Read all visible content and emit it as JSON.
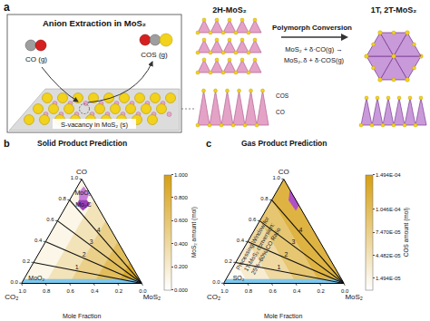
{
  "panel_a": {
    "label": "a",
    "title": "Anion Extraction in MoS₂",
    "gas_in": "CO (g)",
    "gas_out": "COS (g)",
    "vacancy": "S-vacancy in MoS₂ (s)",
    "start_phase": "2H-MoS₂",
    "conversion": "Polymorph Conversion",
    "equation": [
      "MoS₂ + δ·CO(g) →",
      "MoS₂₋δ + δ·COS(g)"
    ],
    "end_phase": "1T, 2T-MoS₂",
    "slab_gases": [
      "COS",
      "CO"
    ]
  },
  "chart_data": [
    {
      "type": "ternary",
      "label": "b",
      "title": "Solid Product Prediction",
      "axis_label": "Mole Fraction",
      "grid": false,
      "axes": {
        "a": {
          "title": "CO",
          "ticks": [
            {
              "value": 0,
              "label": "0.0"
            },
            {
              "value": 0.2,
              "label": "0.2"
            },
            {
              "value": 0.4,
              "label": "0.4"
            },
            {
              "value": 0.6,
              "label": "0.6"
            },
            {
              "value": 0.8,
              "label": "0.8"
            },
            {
              "value": 1,
              "label": "1.0"
            }
          ]
        },
        "b": {
          "title": "CO₂",
          "ticks": [
            {
              "value": 0,
              "label": "0.0"
            },
            {
              "value": 0.2,
              "label": "0.2"
            },
            {
              "value": 0.4,
              "label": "0.4"
            },
            {
              "value": 0.6,
              "label": "0.6"
            },
            {
              "value": 0.8,
              "label": "0.8"
            },
            {
              "value": 1,
              "label": "1.0"
            }
          ]
        },
        "c": {
          "title": "MoS₂"
        }
      },
      "colorbar": {
        "title": "MoS₂ amount (mol)",
        "range": [
          0,
          1
        ],
        "ticks": [
          {
            "value": 0,
            "label": "0.000"
          },
          {
            "value": 0.2,
            "label": "0.200"
          },
          {
            "value": 0.4,
            "label": "0.400"
          },
          {
            "value": 0.6,
            "label": "0.600"
          },
          {
            "value": 0.8,
            "label": "0.800"
          },
          {
            "value": 1,
            "label": "1.000"
          }
        ]
      },
      "bands": [
        {
          "value": 0.1,
          "points": [
            [
              1,
              0,
              0
            ],
            [
              0,
              1,
              0
            ],
            [
              0,
              0.8,
              0.2
            ],
            [
              0.8,
              0,
              0.2
            ]
          ]
        },
        {
          "value": 0.3,
          "points": [
            [
              0.8,
              0,
              0.2
            ],
            [
              0,
              0.8,
              0.2
            ],
            [
              0,
              0.6,
              0.4
            ],
            [
              0.6,
              0,
              0.4
            ]
          ]
        },
        {
          "value": 0.5,
          "points": [
            [
              0.6,
              0,
              0.4
            ],
            [
              0,
              0.6,
              0.4
            ],
            [
              0,
              0.4,
              0.6
            ],
            [
              0.4,
              0,
              0.6
            ]
          ]
        },
        {
          "value": 0.7,
          "points": [
            [
              0.4,
              0,
              0.6
            ],
            [
              0,
              0.4,
              0.6
            ],
            [
              0,
              0.2,
              0.8
            ],
            [
              0.2,
              0,
              0.8
            ]
          ]
        },
        {
          "value": 0.9,
          "points": [
            [
              0.2,
              0,
              0.8
            ],
            [
              0,
              0.2,
              0.8
            ],
            [
              0,
              0,
              1
            ]
          ]
        }
      ],
      "regions": [
        {
          "label": "MoO₂",
          "color": "#c77ddb",
          "points": [
            [
              0.93,
              0.02,
              0.05
            ],
            [
              0.86,
              0.01,
              0.13
            ],
            [
              0.8,
              0.06,
              0.14
            ],
            [
              0.8,
              0.12,
              0.08
            ],
            [
              0.88,
              0.08,
              0.04
            ]
          ],
          "label_at": [
            0.86,
            0.06,
            0.08
          ]
        },
        {
          "label": "Mo₂C",
          "color": "#9b3fb5",
          "points": [
            [
              0.8,
              0.06,
              0.14
            ],
            [
              0.76,
              0.05,
              0.19
            ],
            [
              0.7,
              0.14,
              0.16
            ],
            [
              0.76,
              0.16,
              0.08
            ],
            [
              0.8,
              0.12,
              0.08
            ]
          ],
          "label_at": [
            0.75,
            0.11,
            0.14
          ]
        },
        {
          "label": "MoO₂",
          "color": "#7ec8ee",
          "points": [
            [
              0,
              1,
              0
            ],
            [
              0,
              0,
              1
            ],
            [
              0.04,
              0,
              0.96
            ],
            [
              0.04,
              0.96,
              0
            ]
          ],
          "label_at": [
            0.05,
            0.85,
            0.1
          ]
        }
      ],
      "lines": [
        {
          "label": "4",
          "points": [
            [
              0,
              0,
              1
            ],
            [
              0.8,
              0.2,
              0
            ]
          ],
          "label_at": [
            0.48,
            0.12,
            0.4
          ]
        },
        {
          "label": "3",
          "points": [
            [
              0,
              0,
              1
            ],
            [
              0.6,
              0.4,
              0
            ]
          ],
          "label_at": [
            0.36,
            0.24,
            0.4
          ]
        },
        {
          "label": "2",
          "points": [
            [
              0,
              0,
              1
            ],
            [
              0.4,
              0.6,
              0
            ]
          ],
          "label_at": [
            0.24,
            0.36,
            0.4
          ]
        },
        {
          "label": "1",
          "points": [
            [
              0,
              0,
              1
            ],
            [
              0.2,
              0.8,
              0
            ]
          ],
          "label_at": [
            0.12,
            0.48,
            0.4
          ]
        }
      ]
    },
    {
      "type": "ternary",
      "label": "c",
      "title": "Gas Product Prediction",
      "axis_label": "Mole Fraction",
      "grid": false,
      "annotation": [
        "Processing Window for",
        "1T-MoS₂ conversion:",
        "25%~60% CO Ratio"
      ],
      "axes": {
        "a": {
          "title": "CO",
          "ticks": [
            {
              "value": 0,
              "label": "0.0"
            },
            {
              "value": 0.2,
              "label": "0.2"
            },
            {
              "value": 0.4,
              "label": "0.4"
            },
            {
              "value": 0.6,
              "label": "0.6"
            },
            {
              "value": 0.8,
              "label": "0.8"
            },
            {
              "value": 1,
              "label": "1.0"
            }
          ]
        },
        "b": {
          "title": "CO₂",
          "ticks": [
            {
              "value": 0,
              "label": "0.0"
            },
            {
              "value": 0.2,
              "label": "0.2"
            },
            {
              "value": 0.4,
              "label": "0.4"
            },
            {
              "value": 0.6,
              "label": "0.6"
            },
            {
              "value": 0.8,
              "label": "0.8"
            },
            {
              "value": 1,
              "label": "1.0"
            }
          ]
        },
        "c": {
          "title": "MoS₂"
        }
      },
      "colorbar": {
        "title": "COS amount (mol)",
        "range": [
          0,
          0.0001494
        ],
        "ticks": [
          {
            "value": 1.494e-05,
            "label": "1.494E-05"
          },
          {
            "value": 4.482e-05,
            "label": "4.482E-05"
          },
          {
            "value": 7.47e-05,
            "label": "7.470E-05"
          },
          {
            "value": 0.0001046,
            "label": "1.046E-04"
          },
          {
            "value": 0.0001494,
            "label": "1.494E-04"
          }
        ]
      },
      "bands": [
        {
          "value": 0.00012,
          "points": [
            [
              1,
              0,
              0
            ],
            [
              0,
              0,
              1
            ],
            [
              0,
              0.2,
              0.8
            ],
            [
              0.8,
              0.2,
              0
            ]
          ]
        },
        {
          "value": 9e-05,
          "points": [
            [
              0.8,
              0.2,
              0
            ],
            [
              0,
              0.2,
              0.8
            ],
            [
              0,
              0.4,
              0.6
            ],
            [
              0.6,
              0.4,
              0
            ]
          ]
        },
        {
          "value": 6e-05,
          "points": [
            [
              0.6,
              0.4,
              0
            ],
            [
              0,
              0.4,
              0.6
            ],
            [
              0,
              0.6,
              0.4
            ],
            [
              0.4,
              0.6,
              0
            ]
          ]
        },
        {
          "value": 3e-05,
          "points": [
            [
              0.4,
              0.6,
              0
            ],
            [
              0,
              0.6,
              0.4
            ],
            [
              0,
              0.8,
              0.2
            ],
            [
              0.2,
              0.8,
              0
            ]
          ]
        },
        {
          "value": 5e-06,
          "points": [
            [
              0.2,
              0.8,
              0
            ],
            [
              0,
              0.8,
              0.2
            ],
            [
              0,
              1,
              0
            ]
          ]
        }
      ],
      "regions": [
        {
          "color": "#b04fc9",
          "points": [
            [
              0.9,
              0,
              0.1
            ],
            [
              0.75,
              0,
              0.25
            ],
            [
              0.7,
              0.05,
              0.25
            ],
            [
              0.8,
              0.06,
              0.14
            ]
          ]
        },
        {
          "label": "SO₂",
          "color": "#7ec8ee",
          "points": [
            [
              0,
              1,
              0
            ],
            [
              0,
              0,
              1
            ],
            [
              0.04,
              0,
              0.96
            ],
            [
              0.04,
              0.96,
              0
            ]
          ],
          "label_at": [
            0.05,
            0.85,
            0.1
          ]
        }
      ],
      "lines": [
        {
          "label": "4",
          "points": [
            [
              0,
              0,
              1
            ],
            [
              0.8,
              0.2,
              0
            ]
          ],
          "label_at": [
            0.48,
            0.12,
            0.4
          ]
        },
        {
          "label": "3",
          "points": [
            [
              0,
              0,
              1
            ],
            [
              0.6,
              0.4,
              0
            ]
          ],
          "label_at": [
            0.36,
            0.24,
            0.4
          ]
        },
        {
          "label": "2",
          "points": [
            [
              0,
              0,
              1
            ],
            [
              0.4,
              0.6,
              0
            ]
          ],
          "label_at": [
            0.24,
            0.36,
            0.4
          ]
        },
        {
          "label": "1",
          "points": [
            [
              0,
              0,
              1
            ],
            [
              0.2,
              0.8,
              0
            ]
          ],
          "label_at": [
            0.12,
            0.48,
            0.4
          ]
        }
      ]
    }
  ]
}
